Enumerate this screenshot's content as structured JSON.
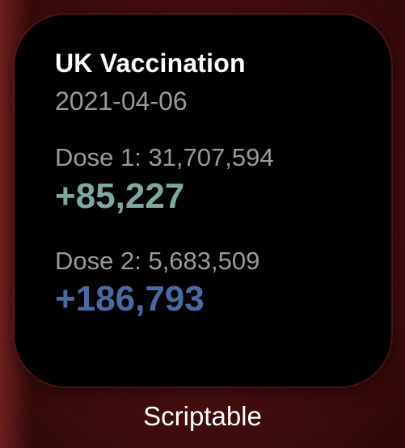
{
  "widget": {
    "title": "UK Vaccination",
    "date": "2021-04-06",
    "dose1": {
      "label": "Dose 1: 31,707,594",
      "increment": "+85,227",
      "color": "#7ea9a0"
    },
    "dose2": {
      "label": "Dose 2: 5,683,509",
      "increment": "+186,793",
      "color": "#4a6aa0"
    }
  },
  "app_label": "Scriptable",
  "colors": {
    "wallpaper": "#4a1010",
    "widget_background": "#000000",
    "secondary_text": "#9a9a9a"
  }
}
